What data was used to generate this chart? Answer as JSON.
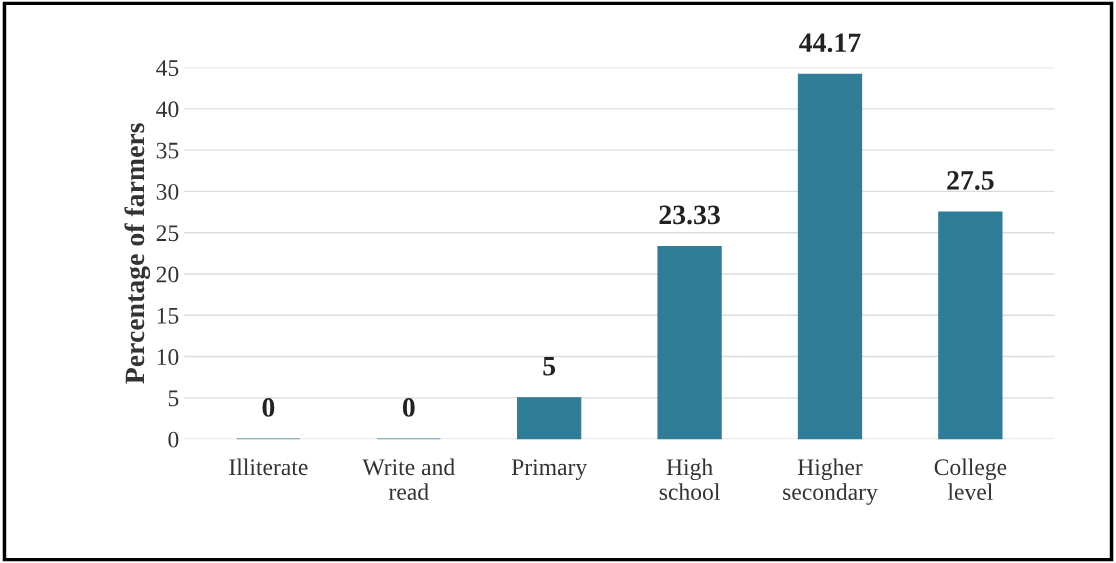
{
  "chart_data": {
    "type": "bar",
    "ylabel": "Percentage of farmers",
    "categories": [
      "Illiterate",
      "Write and\nread",
      "Primary",
      "High\nschool",
      "Higher\nsecondary",
      "College\nlevel"
    ],
    "values": [
      0,
      0,
      5,
      23.33,
      44.17,
      27.5
    ],
    "value_labels": [
      "0",
      "0",
      "5",
      "23.33",
      "44.17",
      "27.5"
    ],
    "color": "#2f7d96",
    "ylim": [
      0,
      45
    ],
    "yticks": [
      0,
      5,
      10,
      15,
      20,
      25,
      30,
      35,
      40,
      45
    ],
    "grid": "y"
  }
}
